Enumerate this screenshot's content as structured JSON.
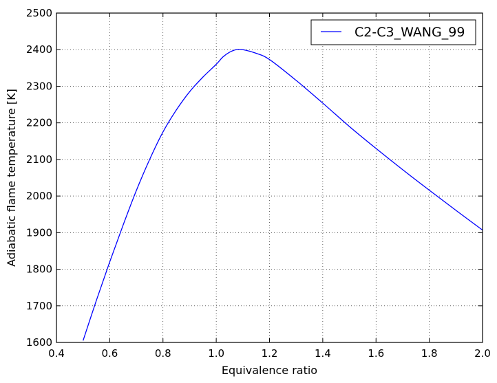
{
  "chart_data": {
    "type": "line",
    "title": "",
    "xlabel": "Equivalence ratio",
    "ylabel": "Adiabatic flame temperature [K]",
    "xlim": [
      0.4,
      2.0
    ],
    "ylim": [
      1600,
      2500
    ],
    "xticks": [
      0.4,
      0.6,
      0.8,
      1.0,
      1.2,
      1.4,
      1.6,
      1.8,
      2.0
    ],
    "xtick_labels": [
      "0.4",
      "0.6",
      "0.8",
      "1.0",
      "1.2",
      "1.4",
      "1.6",
      "1.8",
      "2.0"
    ],
    "yticks": [
      1600,
      1700,
      1800,
      1900,
      2000,
      2100,
      2200,
      2300,
      2400,
      2500
    ],
    "ytick_labels": [
      "1600",
      "1700",
      "1800",
      "1900",
      "2000",
      "2100",
      "2200",
      "2300",
      "2400",
      "2500"
    ],
    "grid": true,
    "legend_position": "top-right",
    "series": [
      {
        "name": "C2-C3_WANG_99",
        "color": "#0000ff",
        "x": [
          0.5,
          0.55,
          0.6,
          0.65,
          0.7,
          0.75,
          0.8,
          0.85,
          0.9,
          0.95,
          1.0,
          1.025,
          1.05,
          1.075,
          1.1,
          1.15,
          1.2,
          1.3,
          1.4,
          1.5,
          1.6,
          1.7,
          1.8,
          1.9,
          2.0
        ],
        "y": [
          1605,
          1715,
          1820,
          1920,
          2015,
          2100,
          2175,
          2235,
          2285,
          2325,
          2360,
          2380,
          2393,
          2400,
          2400,
          2390,
          2373,
          2316,
          2254,
          2190,
          2130,
          2072,
          2016,
          1961,
          1907
        ]
      }
    ]
  }
}
